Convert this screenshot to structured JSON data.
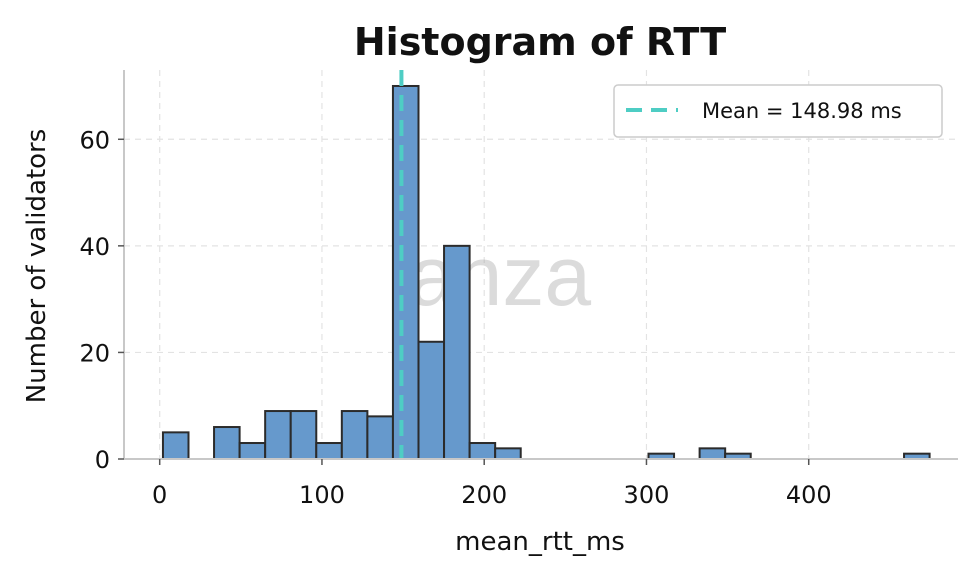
{
  "chart_data": {
    "type": "bar",
    "title": "Histogram of RTT",
    "xlabel": "mean_rtt_ms",
    "ylabel": "Number of validators",
    "xlim": [
      -22,
      492
    ],
    "ylim": [
      0,
      73
    ],
    "xticks": [
      0,
      100,
      200,
      300,
      400
    ],
    "yticks": [
      0,
      20,
      40,
      60
    ],
    "grid": true,
    "legend_position": "top-right",
    "bin_width": 15.75,
    "bin_start": 2,
    "values": [
      5,
      0,
      6,
      3,
      9,
      9,
      3,
      9,
      8,
      70,
      22,
      40,
      3,
      2,
      0,
      0,
      0,
      0,
      0,
      1,
      0,
      2,
      1,
      0,
      0,
      0,
      0,
      0,
      0,
      1
    ],
    "mean": {
      "value": 148.98,
      "label": "Mean = 148.98 ms"
    },
    "watermark": "anza",
    "colors": {
      "bar_fill": "#6699cc",
      "bar_edge": "#2b2b2b",
      "mean_line": "#4ecdc4",
      "grid": "#e3e3e3",
      "axis": "#c8c8c8"
    }
  }
}
